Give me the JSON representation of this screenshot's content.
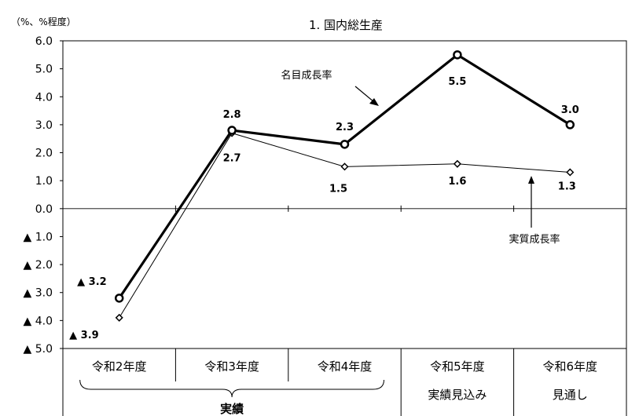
{
  "chart_data": {
    "type": "line",
    "title": "1. 国内総生産",
    "unit_label": "（%、%程度）",
    "categories": [
      "令和2年度",
      "令和3年度",
      "令和4年度",
      "令和5年度",
      "令和6年度"
    ],
    "category_sublabels": [
      "",
      "",
      "",
      "実績見込み",
      "見通し"
    ],
    "group_label": "実績",
    "y_ticks": [
      {
        "value": 6,
        "label": "6.0"
      },
      {
        "value": 5,
        "label": "5.0"
      },
      {
        "value": 4,
        "label": "4.0"
      },
      {
        "value": 3,
        "label": "3.0"
      },
      {
        "value": 2,
        "label": "2.0"
      },
      {
        "value": 1,
        "label": "1.0"
      },
      {
        "value": 0,
        "label": "0.0"
      },
      {
        "value": -1,
        "label": "▲ 1.0"
      },
      {
        "value": -2,
        "label": "▲ 2.0"
      },
      {
        "value": -3,
        "label": "▲ 3.0"
      },
      {
        "value": -4,
        "label": "▲ 4.0"
      },
      {
        "value": -5,
        "label": "▲ 5.0"
      }
    ],
    "ylim": [
      -5,
      6
    ],
    "series": [
      {
        "name": "名目成長率",
        "values": [
          -3.2,
          2.8,
          2.3,
          5.5,
          3.0
        ],
        "labels": [
          "▲ 3.2",
          "2.8",
          "2.3",
          "5.5",
          "3.0"
        ]
      },
      {
        "name": "実質成長率",
        "values": [
          -3.9,
          2.7,
          1.5,
          1.6,
          1.3
        ],
        "labels": [
          "▲ 3.9",
          "2.7",
          "1.5",
          "1.6",
          "1.3"
        ]
      }
    ]
  }
}
